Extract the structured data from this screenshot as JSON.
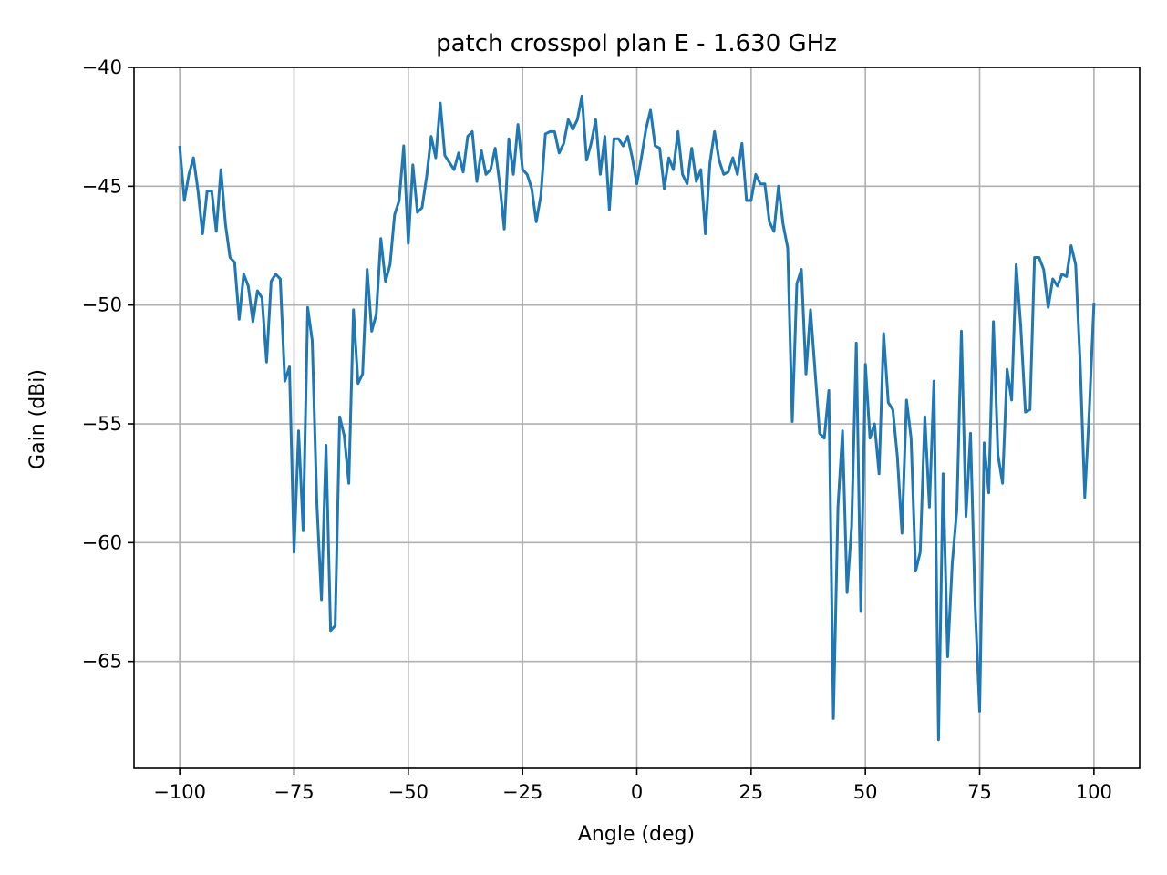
{
  "chart_data": {
    "type": "line",
    "title": "patch crosspol plan E - 1.630 GHz",
    "xlabel": "Angle (deg)",
    "ylabel": "Gain (dBi)",
    "xlim": [
      -110,
      110
    ],
    "ylim": [
      -69.5,
      -40
    ],
    "xticks": [
      -100,
      -75,
      -50,
      -25,
      0,
      25,
      50,
      75,
      100
    ],
    "xtick_labels": [
      "−100",
      "−75",
      "−50",
      "−25",
      "0",
      "25",
      "50",
      "75",
      "100"
    ],
    "yticks": [
      -40,
      -45,
      -50,
      -55,
      -60,
      -65
    ],
    "ytick_labels": [
      "−40",
      "−45",
      "−50",
      "−55",
      "−60",
      "−65"
    ],
    "grid": true,
    "series": [
      {
        "color": "#1f77b4",
        "x": [
          -100,
          -99,
          -98,
          -97,
          -96,
          -95,
          -94,
          -93,
          -92,
          -91,
          -90,
          -89,
          -88,
          -87,
          -86,
          -85,
          -84,
          -83,
          -82,
          -81,
          -80,
          -79,
          -78,
          -77,
          -76,
          -75,
          -74,
          -73,
          -72,
          -71,
          -70,
          -69,
          -68,
          -67,
          -66,
          -65,
          -64,
          -63,
          -62,
          -61,
          -60,
          -59,
          -58,
          -57,
          -56,
          -55,
          -54,
          -53,
          -52,
          -51,
          -50,
          -49,
          -48,
          -47,
          -46,
          -45,
          -44,
          -43,
          -42,
          -41,
          -40,
          -39,
          -38,
          -37,
          -36,
          -35,
          -34,
          -33,
          -32,
          -31,
          -30,
          -29,
          -28,
          -27,
          -26,
          -25,
          -24,
          -23,
          -22,
          -21,
          -20,
          -19,
          -18,
          -17,
          -16,
          -15,
          -14,
          -13,
          -12,
          -11,
          -10,
          -9,
          -8,
          -7,
          -6,
          -5,
          -4,
          -3,
          -2,
          -1,
          0,
          1,
          2,
          3,
          4,
          5,
          6,
          7,
          8,
          9,
          10,
          11,
          12,
          13,
          14,
          15,
          16,
          17,
          18,
          19,
          20,
          21,
          22,
          23,
          24,
          25,
          26,
          27,
          28,
          29,
          30,
          31,
          32,
          33,
          34,
          35,
          36,
          37,
          38,
          39,
          40,
          41,
          42,
          43,
          44,
          45,
          46,
          47,
          48,
          49,
          50,
          51,
          52,
          53,
          54,
          55,
          56,
          57,
          58,
          59,
          60,
          61,
          62,
          63,
          64,
          65,
          66,
          67,
          68,
          69,
          70,
          71,
          72,
          73,
          74,
          75,
          76,
          77,
          78,
          79,
          80,
          81,
          82,
          83,
          84,
          85,
          86,
          87,
          88,
          89,
          90,
          91,
          92,
          93,
          94,
          95,
          96,
          97,
          98,
          99,
          100
        ],
        "y": [
          -43.3,
          -45.6,
          -44.5,
          -43.8,
          -45.2,
          -47.0,
          -45.2,
          -45.2,
          -46.9,
          -44.3,
          -46.6,
          -48.0,
          -48.2,
          -50.6,
          -48.7,
          -49.2,
          -50.7,
          -49.4,
          -49.7,
          -52.4,
          -49.0,
          -48.7,
          -48.9,
          -53.2,
          -52.6,
          -60.4,
          -55.3,
          -59.5,
          -50.1,
          -51.5,
          -58.3,
          -62.4,
          -55.9,
          -63.7,
          -63.5,
          -54.7,
          -55.5,
          -57.5,
          -50.2,
          -53.3,
          -52.9,
          -48.5,
          -51.1,
          -50.4,
          -47.2,
          -49.0,
          -48.3,
          -46.2,
          -45.6,
          -43.3,
          -47.4,
          -44.1,
          -46.1,
          -45.9,
          -44.6,
          -42.9,
          -43.8,
          -41.5,
          -43.7,
          -44.0,
          -44.3,
          -43.6,
          -44.4,
          -42.9,
          -42.7,
          -44.8,
          -43.5,
          -44.5,
          -44.3,
          -43.4,
          -44.9,
          -46.8,
          -43.0,
          -44.5,
          -42.4,
          -44.3,
          -44.5,
          -45.1,
          -46.5,
          -45.4,
          -42.8,
          -42.7,
          -42.7,
          -43.6,
          -43.2,
          -42.2,
          -42.6,
          -42.2,
          -41.2,
          -43.9,
          -43.2,
          -42.2,
          -44.5,
          -42.9,
          -46.0,
          -43.0,
          -43.0,
          -43.3,
          -42.9,
          -43.8,
          -44.9,
          -43.8,
          -42.6,
          -41.8,
          -43.3,
          -43.4,
          -45.1,
          -43.8,
          -44.3,
          -42.7,
          -44.5,
          -44.9,
          -43.4,
          -44.8,
          -44.3,
          -47.0,
          -44.0,
          -42.7,
          -43.9,
          -44.5,
          -44.4,
          -43.8,
          -44.5,
          -43.2,
          -45.6,
          -45.6,
          -44.5,
          -44.9,
          -44.9,
          -46.5,
          -46.9,
          -45.0,
          -46.6,
          -47.6,
          -54.9,
          -49.1,
          -48.5,
          -52.9,
          -50.2,
          -52.8,
          -55.4,
          -55.6,
          -53.6,
          -67.4,
          -58.5,
          -55.3,
          -62.1,
          -59.3,
          -51.6,
          -62.9,
          -52.5,
          -55.6,
          -55.0,
          -57.1,
          -51.2,
          -54.1,
          -54.4,
          -56.4,
          -59.6,
          -54.0,
          -55.6,
          -61.2,
          -60.4,
          -54.7,
          -58.5,
          -53.2,
          -68.3,
          -57.1,
          -64.8,
          -60.9,
          -58.6,
          -51.1,
          -58.9,
          -55.4,
          -62.6,
          -67.1,
          -55.8,
          -57.9,
          -50.7,
          -56.3,
          -57.5,
          -52.7,
          -54.0,
          -48.3,
          -50.9,
          -54.5,
          -54.4,
          -48.0,
          -48.0,
          -48.5,
          -50.1,
          -48.9,
          -49.2,
          -48.7,
          -48.8,
          -47.5,
          -48.3,
          -52.5,
          -58.1,
          -54.4,
          -49.9
        ]
      }
    ]
  }
}
